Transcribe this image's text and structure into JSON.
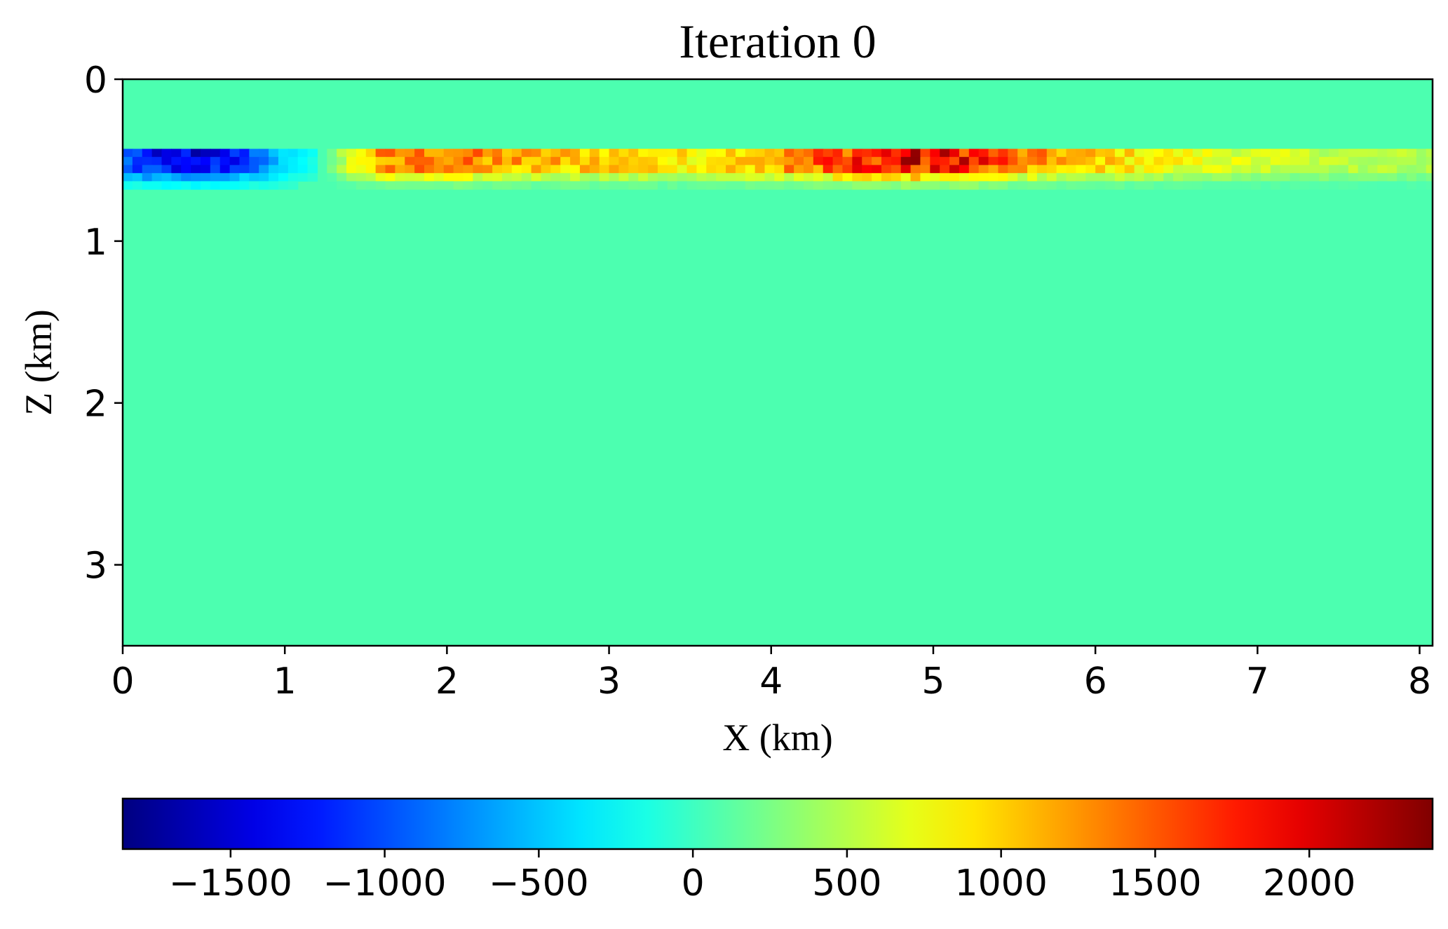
{
  "chart_data": {
    "type": "heatmap",
    "title": "Iteration 0",
    "xlabel": "X (km)",
    "ylabel": "Z (km)",
    "xlim": [
      0,
      8.08
    ],
    "ylim": [
      3.5,
      0
    ],
    "x_ticks": [
      "0",
      "1",
      "2",
      "3",
      "4",
      "5",
      "6",
      "7",
      "8"
    ],
    "y_ticks": [
      "0",
      "1",
      "2",
      "3"
    ],
    "colormap": "jet",
    "color_range": [
      -1850,
      2400
    ],
    "colorbar": {
      "orientation": "horizontal",
      "placement": "bottom",
      "ticks": [
        "−1500",
        "−1000",
        "−500",
        "0",
        "500",
        "1000",
        "1500",
        "2000"
      ]
    },
    "background_value": 0,
    "anomaly_depth_km": [
      0.43,
      0.6
    ],
    "anomaly_profile": [
      {
        "x": 0.0,
        "value": -900
      },
      {
        "x": 0.2,
        "value": -1300
      },
      {
        "x": 0.5,
        "value": -1500
      },
      {
        "x": 0.8,
        "value": -1000
      },
      {
        "x": 1.0,
        "value": -400
      },
      {
        "x": 1.2,
        "value": -150
      },
      {
        "x": 1.4,
        "value": 700
      },
      {
        "x": 1.6,
        "value": 1300
      },
      {
        "x": 2.0,
        "value": 1400
      },
      {
        "x": 2.5,
        "value": 1150
      },
      {
        "x": 3.0,
        "value": 1050
      },
      {
        "x": 3.5,
        "value": 900
      },
      {
        "x": 4.0,
        "value": 1200
      },
      {
        "x": 4.5,
        "value": 1700
      },
      {
        "x": 4.8,
        "value": 1950
      },
      {
        "x": 5.2,
        "value": 1900
      },
      {
        "x": 5.5,
        "value": 1350
      },
      {
        "x": 6.0,
        "value": 1050
      },
      {
        "x": 6.5,
        "value": 800
      },
      {
        "x": 7.0,
        "value": 650
      },
      {
        "x": 7.5,
        "value": 550
      },
      {
        "x": 8.08,
        "value": 500
      }
    ]
  }
}
